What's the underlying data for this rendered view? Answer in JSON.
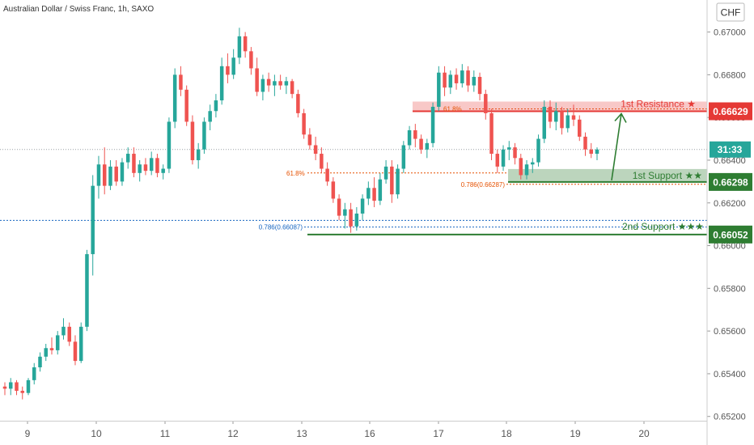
{
  "header": {
    "title": "Australian Dollar / Swiss Franc, 1h, SAXO",
    "currency": "CHF"
  },
  "colors": {
    "bull": "#26a69a",
    "bear": "#ef5350",
    "resistance": "#e53935",
    "support": "#2e7d32",
    "fib_orange": "#e65100",
    "fib_blue": "#1565c0",
    "current_badge": "#26a69a",
    "axis_text": "#555555",
    "grid_hint": "#d0d0d0"
  },
  "chart_data": {
    "type": "candlestick",
    "x_ticks": [
      "9",
      "10",
      "11",
      "12",
      "13",
      "16",
      "17",
      "18",
      "19",
      "20"
    ],
    "y_ticks": [
      "0.65200",
      "0.65400",
      "0.65600",
      "0.65800",
      "0.66000",
      "0.66200",
      "0.66400",
      "0.66600",
      "0.66800",
      "0.67000"
    ],
    "ylim": [
      0.6518,
      0.6715
    ],
    "current_countdown": "31:33",
    "current_price": 0.6645,
    "levels": [
      {
        "name": "1st Resistance ★",
        "price": 0.66629,
        "label": "0.66629",
        "color": "resistance"
      },
      {
        "name": "1st Support ★★",
        "price": 0.66298,
        "label": "0.66298",
        "color": "support"
      },
      {
        "name": "2nd Support ★★★",
        "price": 0.66052,
        "label": "0.66052",
        "color": "support"
      }
    ],
    "fib_annotations": [
      {
        "text": "61.8%",
        "price": 0.6634,
        "color": "fib_orange"
      },
      {
        "text": "0.786(0.66287)",
        "price": 0.66287,
        "color": "fib_orange"
      },
      {
        "text": "61.8%",
        "price": 0.6664,
        "color": "fib_orange"
      },
      {
        "text": "0.786(0.66087)",
        "price": 0.66087,
        "color": "fib_blue"
      }
    ],
    "candles": [
      [
        0.6534,
        0.6536,
        0.653,
        0.6533
      ],
      [
        0.6533,
        0.6538,
        0.653,
        0.6536
      ],
      [
        0.6536,
        0.6537,
        0.653,
        0.6532
      ],
      [
        0.6532,
        0.6534,
        0.6528,
        0.6531
      ],
      [
        0.6531,
        0.6538,
        0.653,
        0.6537
      ],
      [
        0.6537,
        0.6545,
        0.6535,
        0.6543
      ],
      [
        0.6543,
        0.655,
        0.6541,
        0.6548
      ],
      [
        0.6548,
        0.6554,
        0.6546,
        0.6552
      ],
      [
        0.6552,
        0.6557,
        0.6549,
        0.6551
      ],
      [
        0.6551,
        0.656,
        0.6549,
        0.6558
      ],
      [
        0.6558,
        0.6566,
        0.6556,
        0.6562
      ],
      [
        0.6562,
        0.6564,
        0.6553,
        0.6555
      ],
      [
        0.6555,
        0.6558,
        0.6544,
        0.6546
      ],
      [
        0.6546,
        0.6564,
        0.6545,
        0.6562
      ],
      [
        0.6562,
        0.6598,
        0.656,
        0.6596
      ],
      [
        0.6596,
        0.6633,
        0.6586,
        0.6628
      ],
      [
        0.6628,
        0.6642,
        0.6622,
        0.6638
      ],
      [
        0.6638,
        0.6646,
        0.6624,
        0.6628
      ],
      [
        0.6628,
        0.664,
        0.6626,
        0.6637
      ],
      [
        0.6637,
        0.664,
        0.6628,
        0.663
      ],
      [
        0.663,
        0.6641,
        0.6628,
        0.6639
      ],
      [
        0.6639,
        0.6646,
        0.6636,
        0.6643
      ],
      [
        0.6643,
        0.6646,
        0.6632,
        0.6634
      ],
      [
        0.6634,
        0.664,
        0.663,
        0.6638
      ],
      [
        0.6638,
        0.6641,
        0.6633,
        0.6635
      ],
      [
        0.6635,
        0.6644,
        0.6633,
        0.6641
      ],
      [
        0.6641,
        0.6643,
        0.6632,
        0.6634
      ],
      [
        0.6634,
        0.6638,
        0.6631,
        0.6636
      ],
      [
        0.6636,
        0.666,
        0.6634,
        0.6658
      ],
      [
        0.6658,
        0.6683,
        0.6655,
        0.668
      ],
      [
        0.668,
        0.6684,
        0.667,
        0.6673
      ],
      [
        0.6673,
        0.6675,
        0.6656,
        0.6658
      ],
      [
        0.6658,
        0.6661,
        0.6638,
        0.664
      ],
      [
        0.664,
        0.6648,
        0.6636,
        0.6645
      ],
      [
        0.6645,
        0.666,
        0.6643,
        0.6658
      ],
      [
        0.6658,
        0.6666,
        0.6654,
        0.6663
      ],
      [
        0.6663,
        0.6671,
        0.666,
        0.6668
      ],
      [
        0.6668,
        0.6688,
        0.6666,
        0.6684
      ],
      [
        0.6684,
        0.669,
        0.6676,
        0.668
      ],
      [
        0.668,
        0.6692,
        0.6678,
        0.6688
      ],
      [
        0.6688,
        0.6702,
        0.6685,
        0.6698
      ],
      [
        0.6698,
        0.67,
        0.6688,
        0.6691
      ],
      [
        0.6691,
        0.6693,
        0.668,
        0.6683
      ],
      [
        0.6683,
        0.6688,
        0.667,
        0.6672
      ],
      [
        0.6672,
        0.668,
        0.6668,
        0.6678
      ],
      [
        0.6678,
        0.6681,
        0.6672,
        0.6675
      ],
      [
        0.6675,
        0.668,
        0.667,
        0.6677
      ],
      [
        0.6677,
        0.668,
        0.6673,
        0.6675
      ],
      [
        0.6675,
        0.6679,
        0.6671,
        0.6677
      ],
      [
        0.6677,
        0.6678,
        0.6669,
        0.6671
      ],
      [
        0.6671,
        0.6673,
        0.666,
        0.6662
      ],
      [
        0.6662,
        0.6664,
        0.665,
        0.6652
      ],
      [
        0.6652,
        0.6655,
        0.6645,
        0.6647
      ],
      [
        0.6647,
        0.6651,
        0.664,
        0.6643
      ],
      [
        0.6643,
        0.6646,
        0.6634,
        0.6636
      ],
      [
        0.6636,
        0.6639,
        0.6628,
        0.663
      ],
      [
        0.663,
        0.6632,
        0.662,
        0.6622
      ],
      [
        0.6622,
        0.6624,
        0.6612,
        0.6614
      ],
      [
        0.6614,
        0.662,
        0.6608,
        0.6617
      ],
      [
        0.6617,
        0.662,
        0.6606,
        0.6609
      ],
      [
        0.6609,
        0.6618,
        0.6607,
        0.6615
      ],
      [
        0.6615,
        0.6624,
        0.6612,
        0.6622
      ],
      [
        0.6622,
        0.663,
        0.6619,
        0.6627
      ],
      [
        0.6627,
        0.6632,
        0.6618,
        0.6621
      ],
      [
        0.6621,
        0.6634,
        0.6619,
        0.6631
      ],
      [
        0.6631,
        0.664,
        0.6629,
        0.6637
      ],
      [
        0.6637,
        0.664,
        0.662,
        0.6624
      ],
      [
        0.6624,
        0.6638,
        0.6622,
        0.6636
      ],
      [
        0.6636,
        0.6649,
        0.6634,
        0.6647
      ],
      [
        0.6647,
        0.6656,
        0.6645,
        0.6654
      ],
      [
        0.6654,
        0.6657,
        0.6646,
        0.665
      ],
      [
        0.665,
        0.6652,
        0.6643,
        0.6645
      ],
      [
        0.6645,
        0.665,
        0.6641,
        0.6648
      ],
      [
        0.6648,
        0.6667,
        0.6646,
        0.6665
      ],
      [
        0.6665,
        0.6684,
        0.6663,
        0.6681
      ],
      [
        0.6681,
        0.6684,
        0.667,
        0.6674
      ],
      [
        0.6674,
        0.6682,
        0.6671,
        0.668
      ],
      [
        0.668,
        0.6683,
        0.6673,
        0.6676
      ],
      [
        0.6676,
        0.6685,
        0.6674,
        0.6682
      ],
      [
        0.6682,
        0.6684,
        0.6672,
        0.6675
      ],
      [
        0.6675,
        0.6682,
        0.6672,
        0.6679
      ],
      [
        0.6679,
        0.6681,
        0.6668,
        0.6671
      ],
      [
        0.6671,
        0.6673,
        0.6659,
        0.6662
      ],
      [
        0.6662,
        0.6664,
        0.664,
        0.6643
      ],
      [
        0.6643,
        0.6645,
        0.6634,
        0.6637
      ],
      [
        0.6637,
        0.6647,
        0.6635,
        0.6645
      ],
      [
        0.6645,
        0.6649,
        0.664,
        0.6646
      ],
      [
        0.6646,
        0.6648,
        0.6638,
        0.6641
      ],
      [
        0.6641,
        0.6643,
        0.6631,
        0.6633
      ],
      [
        0.6633,
        0.664,
        0.6631,
        0.6638
      ],
      [
        0.6638,
        0.6641,
        0.6634,
        0.6639
      ],
      [
        0.6639,
        0.6652,
        0.6637,
        0.665
      ],
      [
        0.665,
        0.6668,
        0.6648,
        0.6665
      ],
      [
        0.6665,
        0.6668,
        0.6655,
        0.6658
      ],
      [
        0.6658,
        0.6667,
        0.6654,
        0.6663
      ],
      [
        0.6663,
        0.6665,
        0.6652,
        0.6655
      ],
      [
        0.6655,
        0.6664,
        0.6653,
        0.6661
      ],
      [
        0.6661,
        0.6666,
        0.6656,
        0.6659
      ],
      [
        0.6659,
        0.6661,
        0.6649,
        0.6651
      ],
      [
        0.6651,
        0.6653,
        0.6642,
        0.6645
      ],
      [
        0.6645,
        0.6648,
        0.6641,
        0.6643
      ],
      [
        0.6643,
        0.6646,
        0.664,
        0.6645
      ]
    ]
  }
}
